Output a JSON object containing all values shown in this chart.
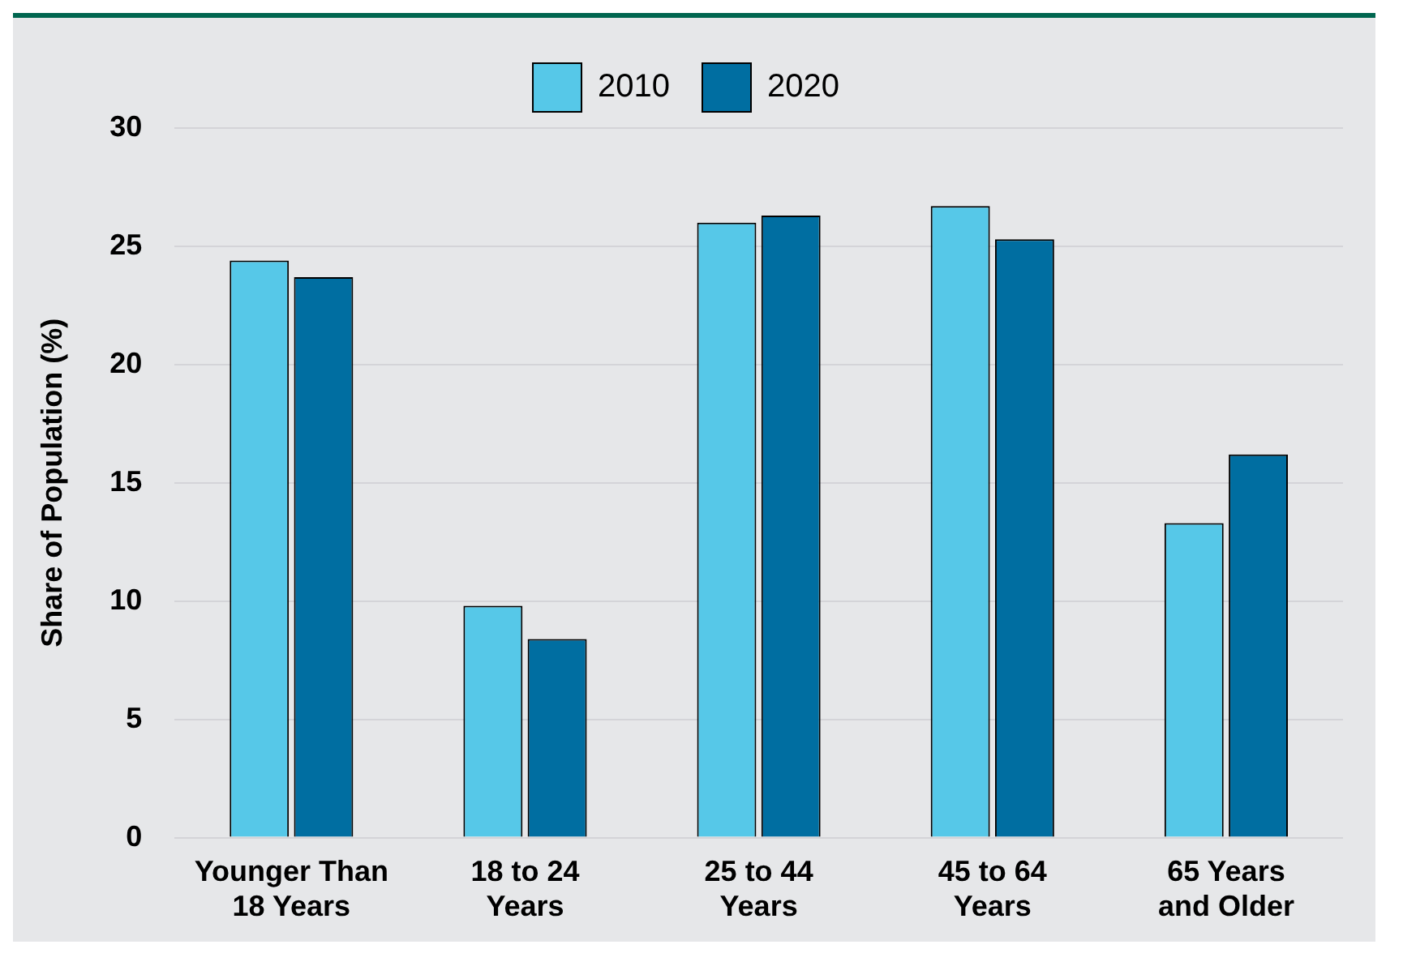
{
  "chart_data": {
    "type": "bar",
    "ylabel": "Share of Population (%)",
    "categories": [
      "Younger Than\n18 Years",
      "18 to 24\nYears",
      "25 to 44\nYears",
      "45 to 64\nYears",
      "65 Years\nand Older"
    ],
    "series": [
      {
        "name": "2010",
        "color": "#56c8e8",
        "values": [
          24.4,
          9.8,
          26.0,
          26.7,
          13.3
        ]
      },
      {
        "name": "2020",
        "color": "#006ea1",
        "values": [
          23.7,
          8.4,
          26.3,
          25.3,
          16.2
        ]
      }
    ],
    "ylim": [
      0,
      30
    ],
    "yticks": [
      0,
      5,
      10,
      15,
      20,
      25,
      30
    ],
    "grid": "y",
    "legend": "top"
  }
}
